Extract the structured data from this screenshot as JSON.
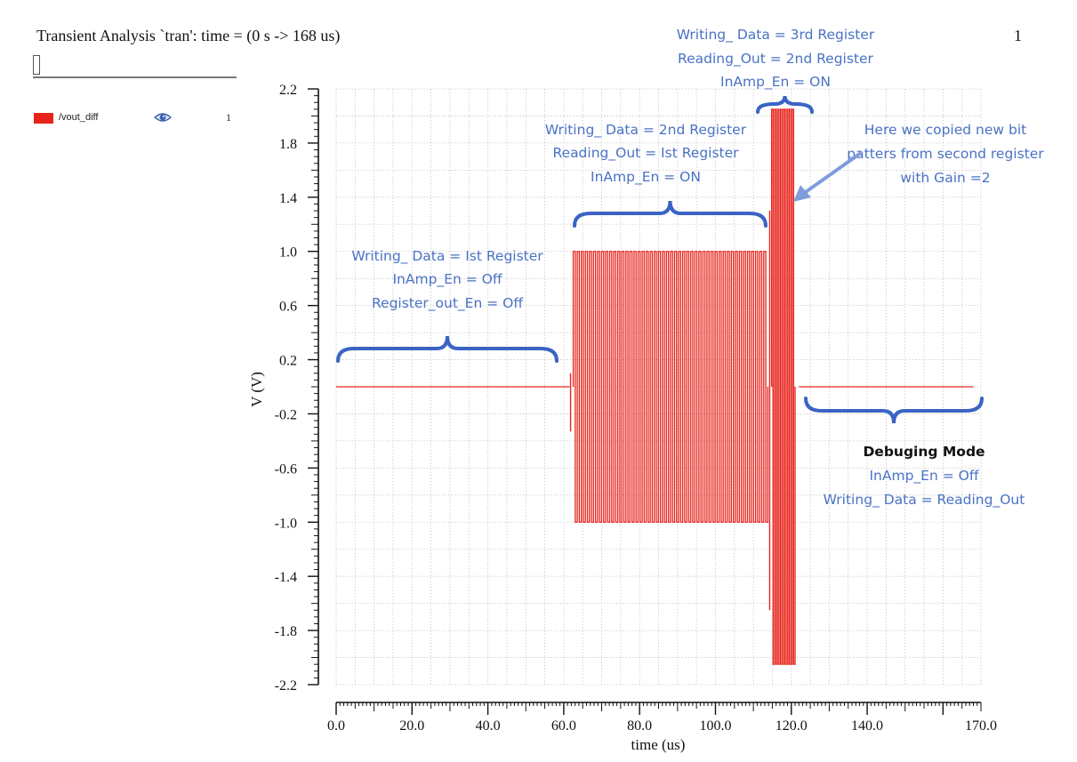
{
  "header": {
    "title": "Transient Analysis `tran': time = (0 s -> 168 us)",
    "page_number": "1"
  },
  "legend": {
    "signal_label": "/vout_diff",
    "count": "1",
    "swatch_color": "#e8231c",
    "icon": "eye-icon"
  },
  "chart_data": {
    "type": "line",
    "title": "",
    "xlabel": "time (us)",
    "ylabel": "V (V)",
    "xlim": [
      0,
      170
    ],
    "ylim": [
      -2.2,
      2.2
    ],
    "x_ticks": [
      "0.0",
      "20.0",
      "40.0",
      "60.0",
      "80.0",
      "100.0",
      "120.0",
      "140.0",
      "170.0"
    ],
    "x_tick_values": [
      0,
      20,
      40,
      60,
      80,
      100,
      120,
      140,
      170
    ],
    "y_ticks": [
      "2.2",
      "1.8",
      "1.4",
      "1.0",
      "0.6",
      "0.2",
      "-0.2",
      "-0.6",
      "-1.0",
      "-1.4",
      "-1.8",
      "-2.2"
    ],
    "y_tick_values": [
      2.2,
      1.8,
      1.4,
      1.0,
      0.6,
      0.2,
      -0.2,
      -0.6,
      -1.0,
      -1.4,
      -1.8,
      -2.2
    ],
    "grid": true,
    "series": [
      {
        "name": "/vout_diff",
        "color": "#e8231c",
        "segments": [
          {
            "phase": "idle",
            "x_start": 0,
            "x_end": 61.5,
            "value": 0.0
          },
          {
            "phase": "reading-1st-register",
            "x_start": 62.5,
            "x_end": 113.8,
            "high": 1.0,
            "low": -1.0,
            "cycles": 48
          },
          {
            "phase": "reading-2nd-register-gain2",
            "x_start": 114.8,
            "x_end": 121.0,
            "high": 2.05,
            "low": -2.05,
            "cycles": 8
          },
          {
            "phase": "debug",
            "x_start": 122.0,
            "x_end": 168,
            "value": 0.0
          }
        ]
      }
    ],
    "annotations": [
      {
        "lines": [
          "Writing_ Data = Ist Register",
          "InAmp_En = Off",
          "Register_out_En = Off"
        ]
      },
      {
        "lines": [
          "Writing_ Data = 2nd Register",
          "Reading_Out = Ist Register",
          "InAmp_En = ON"
        ]
      },
      {
        "lines": [
          "Writing_ Data = 3rd Register",
          "Reading_Out = 2nd Register",
          "InAmp_En = ON"
        ]
      },
      {
        "lines": [
          "Here we copied new bit",
          "patters from second register",
          "with Gain =2"
        ]
      },
      {
        "heading": "Debuging Mode",
        "lines": [
          "InAmp_En = Off",
          "Writing_ Data = Reading_Out"
        ]
      }
    ]
  }
}
